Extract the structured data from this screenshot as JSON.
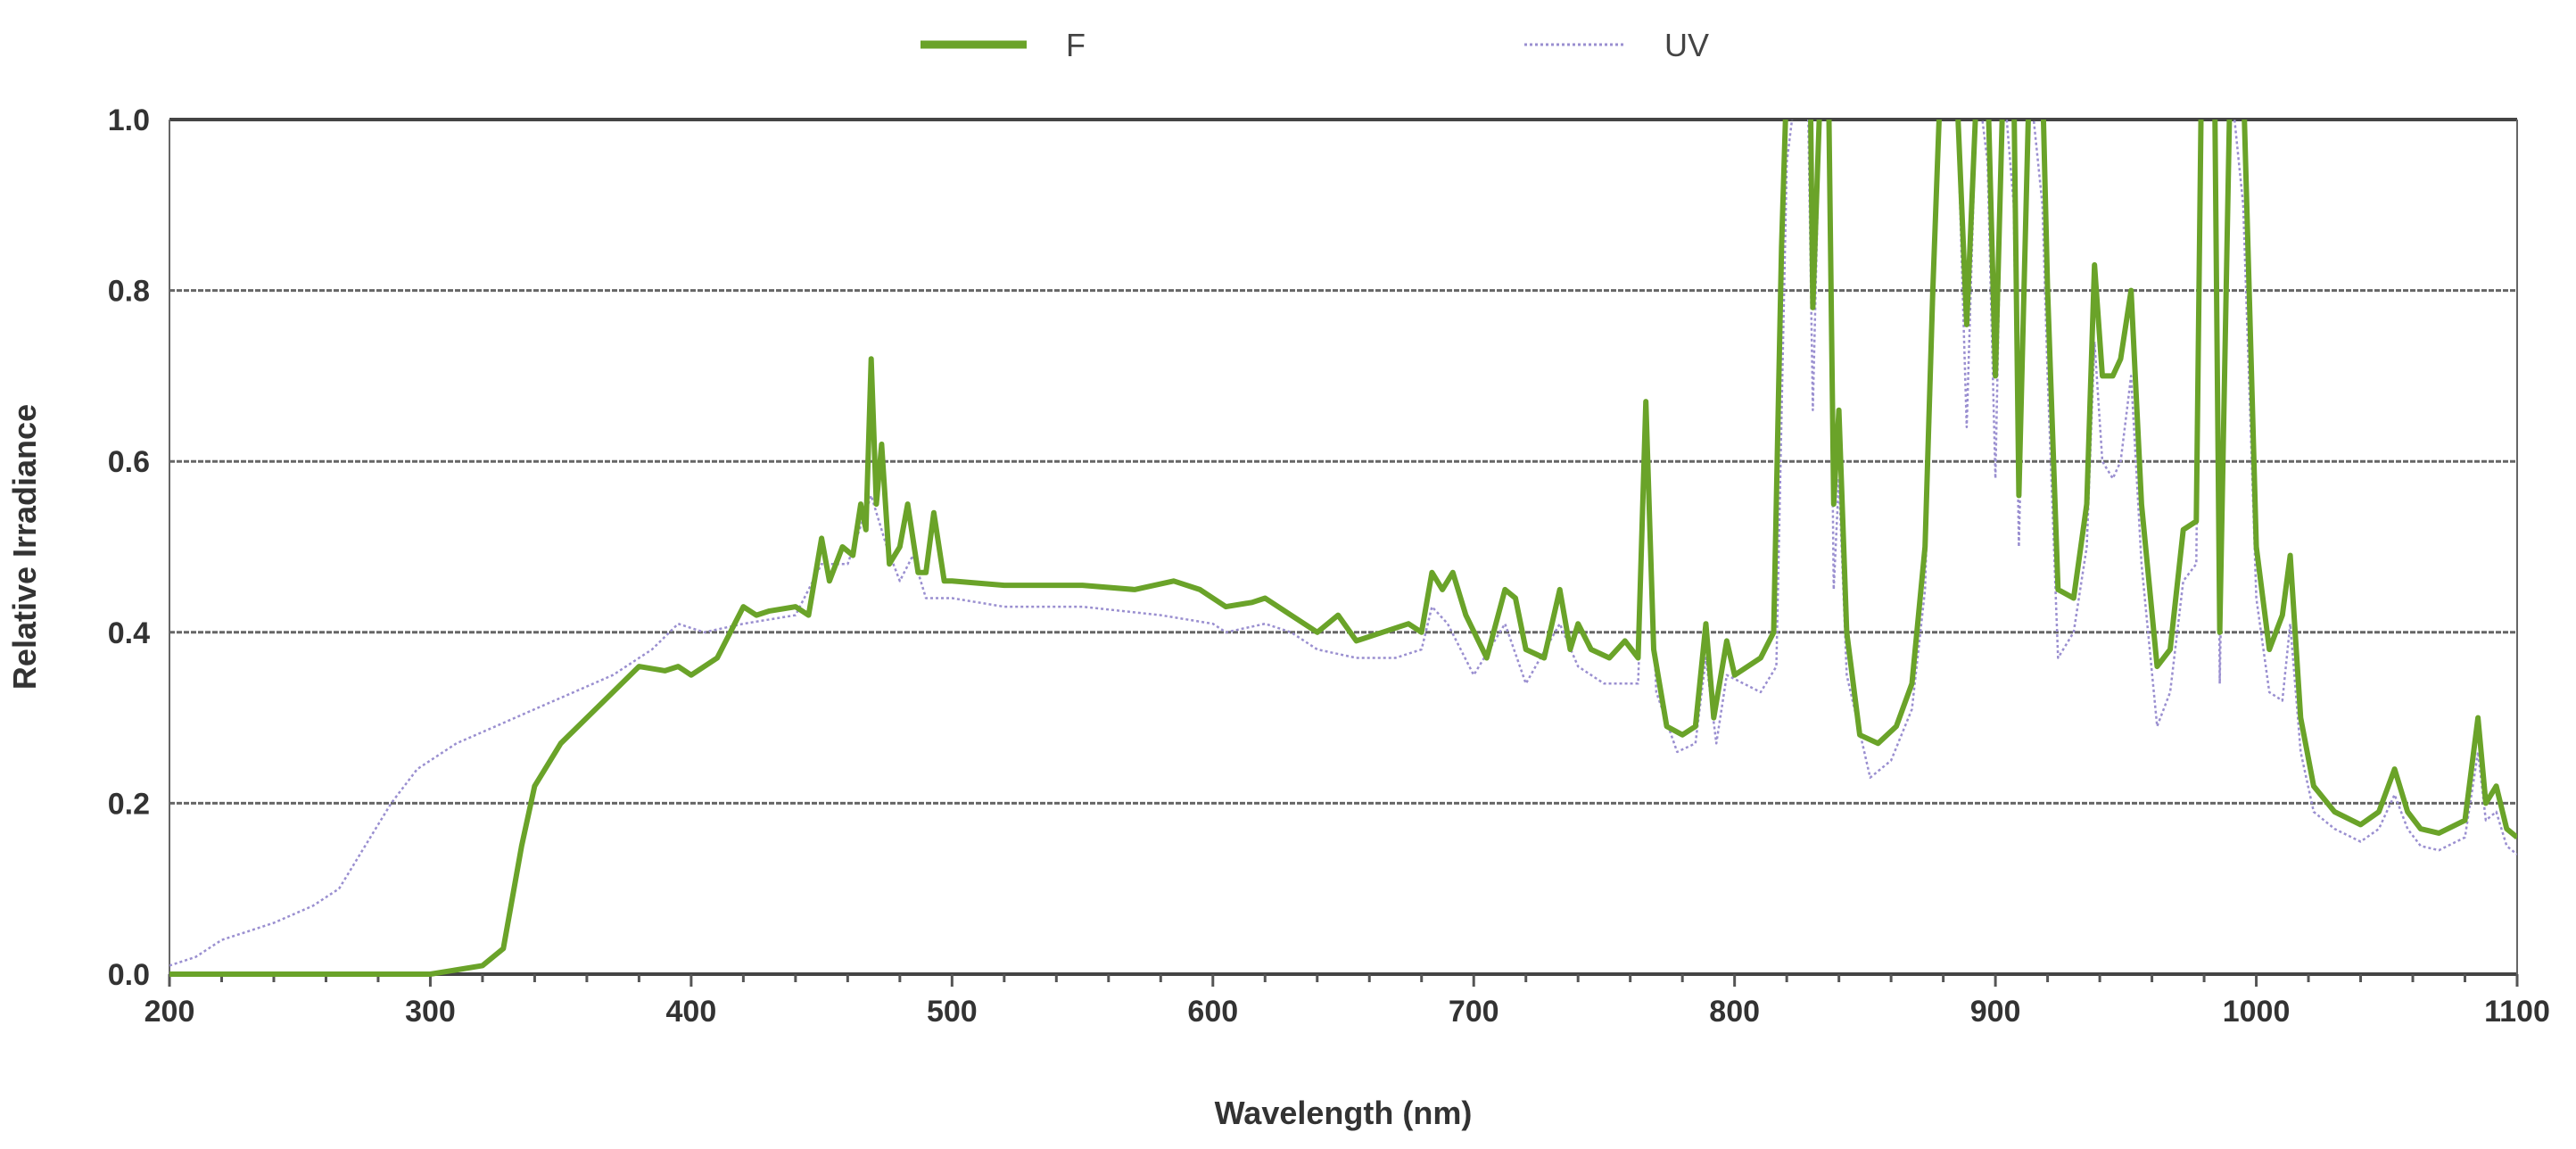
{
  "chart_data": {
    "type": "line",
    "title": "",
    "xlabel": "Wavelength (nm)",
    "ylabel": "Relative Irradiance",
    "xlim": [
      200,
      1100
    ],
    "ylim": [
      0,
      1.0
    ],
    "xticks": [
      "200",
      "300",
      "400",
      "500",
      "600",
      "700",
      "800",
      "900",
      "1000",
      "1100"
    ],
    "yticks": [
      "0.0",
      "0.2",
      "0.4",
      "0.6",
      "0.8",
      "1.0"
    ],
    "grid": "horizontal",
    "legend_position": "top-center",
    "series": [
      {
        "name": "F",
        "color": "#6aa329",
        "style": "solid",
        "points": [
          [
            200,
            0
          ],
          [
            300,
            0
          ],
          [
            320,
            0.01
          ],
          [
            328,
            0.03
          ],
          [
            335,
            0.15
          ],
          [
            340,
            0.22
          ],
          [
            350,
            0.27
          ],
          [
            360,
            0.3
          ],
          [
            370,
            0.33
          ],
          [
            380,
            0.36
          ],
          [
            390,
            0.355
          ],
          [
            395,
            0.36
          ],
          [
            400,
            0.35
          ],
          [
            410,
            0.37
          ],
          [
            415,
            0.4
          ],
          [
            420,
            0.43
          ],
          [
            425,
            0.42
          ],
          [
            430,
            0.425
          ],
          [
            440,
            0.43
          ],
          [
            445,
            0.42
          ],
          [
            450,
            0.51
          ],
          [
            453,
            0.46
          ],
          [
            458,
            0.5
          ],
          [
            462,
            0.49
          ],
          [
            465,
            0.55
          ],
          [
            467,
            0.52
          ],
          [
            469,
            0.72
          ],
          [
            471,
            0.55
          ],
          [
            473,
            0.62
          ],
          [
            476,
            0.48
          ],
          [
            480,
            0.5
          ],
          [
            483,
            0.55
          ],
          [
            487,
            0.47
          ],
          [
            490,
            0.47
          ],
          [
            493,
            0.54
          ],
          [
            497,
            0.46
          ],
          [
            500,
            0.46
          ],
          [
            520,
            0.455
          ],
          [
            550,
            0.455
          ],
          [
            570,
            0.45
          ],
          [
            585,
            0.46
          ],
          [
            595,
            0.45
          ],
          [
            605,
            0.43
          ],
          [
            615,
            0.435
          ],
          [
            620,
            0.44
          ],
          [
            630,
            0.42
          ],
          [
            640,
            0.4
          ],
          [
            648,
            0.42
          ],
          [
            655,
            0.39
          ],
          [
            665,
            0.4
          ],
          [
            675,
            0.41
          ],
          [
            680,
            0.4
          ],
          [
            684,
            0.47
          ],
          [
            688,
            0.45
          ],
          [
            692,
            0.47
          ],
          [
            697,
            0.42
          ],
          [
            705,
            0.37
          ],
          [
            712,
            0.45
          ],
          [
            716,
            0.44
          ],
          [
            720,
            0.38
          ],
          [
            727,
            0.37
          ],
          [
            733,
            0.45
          ],
          [
            737,
            0.38
          ],
          [
            740,
            0.41
          ],
          [
            745,
            0.38
          ],
          [
            752,
            0.37
          ],
          [
            758,
            0.39
          ],
          [
            763,
            0.37
          ],
          [
            766,
            0.67
          ],
          [
            769,
            0.38
          ],
          [
            774,
            0.29
          ],
          [
            780,
            0.28
          ],
          [
            785,
            0.29
          ],
          [
            789,
            0.41
          ],
          [
            792,
            0.3
          ],
          [
            797,
            0.39
          ],
          [
            800,
            0.35
          ],
          [
            810,
            0.37
          ],
          [
            815,
            0.4
          ],
          [
            818,
            0.85
          ],
          [
            820,
            1.05
          ],
          [
            826,
            1.05
          ],
          [
            829,
            1.05
          ],
          [
            830,
            0.78
          ],
          [
            833,
            1.05
          ],
          [
            836,
            1.05
          ],
          [
            838,
            0.55
          ],
          [
            840,
            0.66
          ],
          [
            843,
            0.4
          ],
          [
            848,
            0.28
          ],
          [
            855,
            0.27
          ],
          [
            862,
            0.29
          ],
          [
            868,
            0.34
          ],
          [
            873,
            0.5
          ],
          [
            876,
            0.8
          ],
          [
            879,
            1.05
          ],
          [
            885,
            1.05
          ],
          [
            889,
            0.76
          ],
          [
            893,
            1.05
          ],
          [
            897,
            1.05
          ],
          [
            900,
            0.7
          ],
          [
            903,
            1.05
          ],
          [
            907,
            1.05
          ],
          [
            909,
            0.56
          ],
          [
            913,
            1.05
          ],
          [
            918,
            1.05
          ],
          [
            920,
            0.8
          ],
          [
            924,
            0.45
          ],
          [
            930,
            0.44
          ],
          [
            935,
            0.55
          ],
          [
            938,
            0.83
          ],
          [
            941,
            0.7
          ],
          [
            945,
            0.7
          ],
          [
            948,
            0.72
          ],
          [
            952,
            0.8
          ],
          [
            956,
            0.55
          ],
          [
            962,
            0.36
          ],
          [
            967,
            0.38
          ],
          [
            972,
            0.52
          ],
          [
            977,
            0.53
          ],
          [
            979,
            1.05
          ],
          [
            984,
            1.05
          ],
          [
            986,
            0.4
          ],
          [
            990,
            1.05
          ],
          [
            995,
            1.05
          ],
          [
            1000,
            0.5
          ],
          [
            1005,
            0.38
          ],
          [
            1010,
            0.42
          ],
          [
            1013,
            0.49
          ],
          [
            1017,
            0.3
          ],
          [
            1022,
            0.22
          ],
          [
            1030,
            0.19
          ],
          [
            1040,
            0.175
          ],
          [
            1047,
            0.19
          ],
          [
            1053,
            0.24
          ],
          [
            1058,
            0.19
          ],
          [
            1063,
            0.17
          ],
          [
            1070,
            0.165
          ],
          [
            1080,
            0.18
          ],
          [
            1085,
            0.3
          ],
          [
            1088,
            0.2
          ],
          [
            1092,
            0.22
          ],
          [
            1096,
            0.17
          ],
          [
            1100,
            0.16
          ]
        ]
      },
      {
        "name": "UV",
        "color": "#9a8fd0",
        "style": "dotted",
        "points": [
          [
            200,
            0.01
          ],
          [
            210,
            0.02
          ],
          [
            220,
            0.04
          ],
          [
            240,
            0.06
          ],
          [
            255,
            0.08
          ],
          [
            265,
            0.1
          ],
          [
            275,
            0.15
          ],
          [
            285,
            0.2
          ],
          [
            295,
            0.24
          ],
          [
            310,
            0.27
          ],
          [
            325,
            0.29
          ],
          [
            340,
            0.31
          ],
          [
            355,
            0.33
          ],
          [
            370,
            0.35
          ],
          [
            385,
            0.38
          ],
          [
            395,
            0.41
          ],
          [
            405,
            0.4
          ],
          [
            420,
            0.41
          ],
          [
            440,
            0.42
          ],
          [
            450,
            0.48
          ],
          [
            460,
            0.48
          ],
          [
            469,
            0.56
          ],
          [
            475,
            0.5
          ],
          [
            480,
            0.46
          ],
          [
            485,
            0.49
          ],
          [
            490,
            0.44
          ],
          [
            500,
            0.44
          ],
          [
            520,
            0.43
          ],
          [
            550,
            0.43
          ],
          [
            580,
            0.42
          ],
          [
            600,
            0.41
          ],
          [
            605,
            0.4
          ],
          [
            620,
            0.41
          ],
          [
            630,
            0.4
          ],
          [
            640,
            0.38
          ],
          [
            655,
            0.37
          ],
          [
            670,
            0.37
          ],
          [
            680,
            0.38
          ],
          [
            684,
            0.43
          ],
          [
            690,
            0.41
          ],
          [
            700,
            0.35
          ],
          [
            712,
            0.41
          ],
          [
            720,
            0.34
          ],
          [
            733,
            0.41
          ],
          [
            740,
            0.36
          ],
          [
            750,
            0.34
          ],
          [
            763,
            0.34
          ],
          [
            766,
            0.61
          ],
          [
            770,
            0.33
          ],
          [
            778,
            0.26
          ],
          [
            785,
            0.27
          ],
          [
            789,
            0.37
          ],
          [
            793,
            0.27
          ],
          [
            797,
            0.35
          ],
          [
            810,
            0.33
          ],
          [
            816,
            0.36
          ],
          [
            820,
            0.95
          ],
          [
            824,
            1.05
          ],
          [
            828,
            1.05
          ],
          [
            830,
            0.66
          ],
          [
            833,
            1.05
          ],
          [
            836,
            1.05
          ],
          [
            838,
            0.45
          ],
          [
            840,
            0.58
          ],
          [
            843,
            0.35
          ],
          [
            852,
            0.23
          ],
          [
            860,
            0.25
          ],
          [
            868,
            0.31
          ],
          [
            873,
            0.45
          ],
          [
            879,
            1.05
          ],
          [
            885,
            1.05
          ],
          [
            889,
            0.64
          ],
          [
            893,
            1.05
          ],
          [
            897,
            0.95
          ],
          [
            900,
            0.58
          ],
          [
            903,
            1.05
          ],
          [
            907,
            0.9
          ],
          [
            909,
            0.5
          ],
          [
            913,
            1.05
          ],
          [
            918,
            0.9
          ],
          [
            920,
            0.7
          ],
          [
            924,
            0.37
          ],
          [
            930,
            0.4
          ],
          [
            935,
            0.5
          ],
          [
            938,
            0.74
          ],
          [
            941,
            0.6
          ],
          [
            945,
            0.58
          ],
          [
            948,
            0.6
          ],
          [
            952,
            0.7
          ],
          [
            956,
            0.48
          ],
          [
            962,
            0.29
          ],
          [
            967,
            0.33
          ],
          [
            972,
            0.46
          ],
          [
            977,
            0.48
          ],
          [
            979,
            1.05
          ],
          [
            984,
            1.05
          ],
          [
            986,
            0.34
          ],
          [
            990,
            1.05
          ],
          [
            995,
            0.9
          ],
          [
            1000,
            0.44
          ],
          [
            1005,
            0.33
          ],
          [
            1010,
            0.32
          ],
          [
            1013,
            0.41
          ],
          [
            1017,
            0.26
          ],
          [
            1022,
            0.19
          ],
          [
            1030,
            0.17
          ],
          [
            1040,
            0.155
          ],
          [
            1047,
            0.17
          ],
          [
            1053,
            0.21
          ],
          [
            1058,
            0.17
          ],
          [
            1063,
            0.15
          ],
          [
            1070,
            0.145
          ],
          [
            1080,
            0.16
          ],
          [
            1085,
            0.26
          ],
          [
            1088,
            0.18
          ],
          [
            1092,
            0.19
          ],
          [
            1096,
            0.15
          ],
          [
            1100,
            0.14
          ]
        ]
      }
    ]
  }
}
